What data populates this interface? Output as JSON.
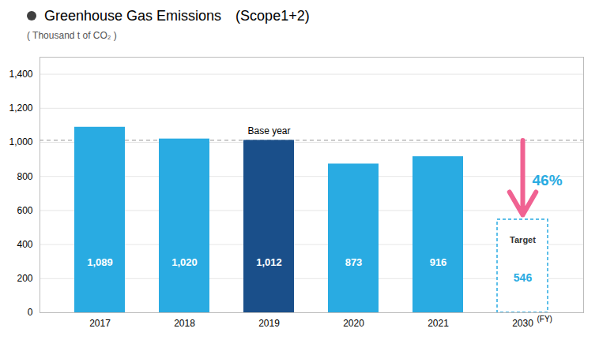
{
  "chart_data": {
    "type": "bar",
    "title": "Greenhouse Gas Emissions　(Scope1+2)",
    "title_dot_color": "#404040",
    "subtitle": "( Thousand t of CO₂ )",
    "categories": [
      "2017",
      "2018",
      "2019",
      "2020",
      "2021"
    ],
    "values": [
      1089,
      1020,
      1012,
      873,
      916
    ],
    "colors": [
      "#29abe2",
      "#29abe2",
      "#1a4f8a",
      "#29abe2",
      "#29abe2"
    ],
    "data_labels": true,
    "value_labels": [
      "1,089",
      "1,020",
      "1,012",
      "873",
      "916"
    ],
    "value_label_color": "#ffffff",
    "target": {
      "category": "2030",
      "value": 546,
      "label": "Target",
      "color": "#29abe2",
      "line_style": "dashed",
      "x_note": "(FY)"
    },
    "reference_line": {
      "value": 1012,
      "label": "Base year",
      "category": "2019",
      "color": "#aaaaaa",
      "line_style": "dashed"
    },
    "change_arrow": {
      "from": 1012,
      "to": 546,
      "label": "46%",
      "color": "#f06292",
      "label_color": "#29abe2"
    },
    "ylim": [
      0,
      1500
    ],
    "yticks": [
      0,
      200,
      400,
      600,
      800,
      {
        "value": 1000,
        "label": "1,000"
      },
      {
        "value": 1200,
        "label": "1,200"
      },
      {
        "value": 1400,
        "label": "1,400"
      }
    ],
    "grid": true
  }
}
